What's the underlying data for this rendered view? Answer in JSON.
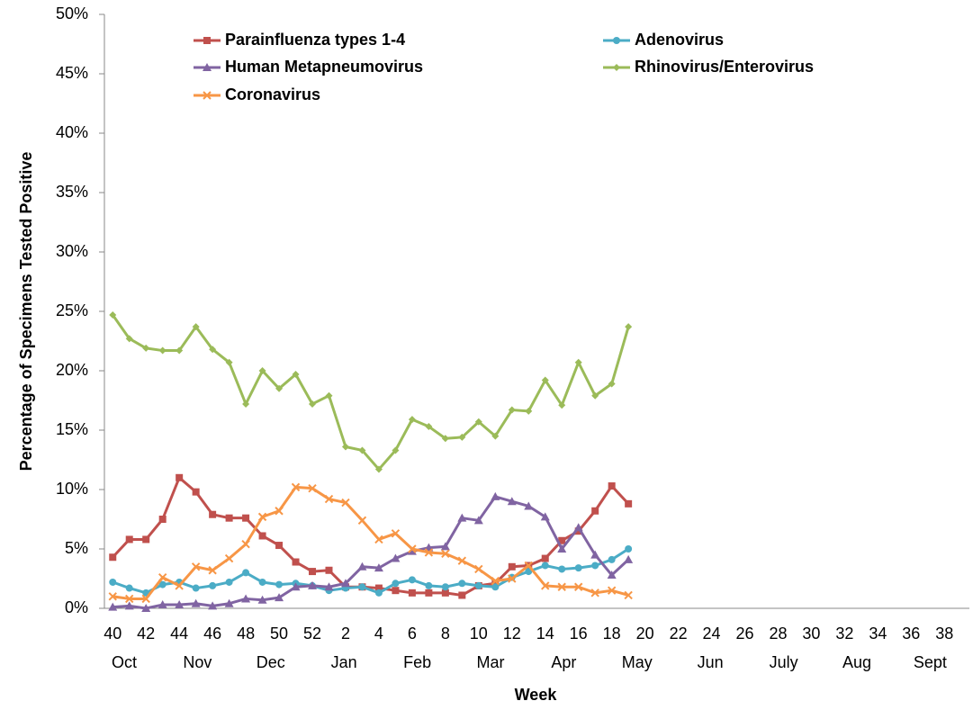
{
  "chart_data": {
    "type": "line",
    "y_label": "Percentage of Specimens Tested Positive",
    "x_label": "Week",
    "categories": [
      "40",
      null,
      "42",
      null,
      "44",
      null,
      "46",
      null,
      "48",
      null,
      "50",
      null,
      "52",
      null,
      "2",
      null,
      "4",
      null,
      "6",
      null,
      "8",
      null,
      "10",
      null,
      "12",
      null,
      "14",
      null,
      "16",
      null,
      "18",
      null,
      "20",
      null,
      "22",
      null,
      "24",
      null,
      "26",
      null,
      "28",
      null,
      "30",
      null,
      "32",
      null,
      "34",
      null,
      "36",
      null,
      "38",
      null
    ],
    "months": [
      "Oct",
      "Nov",
      "Dec",
      "Jan",
      "Feb",
      "Mar",
      "Apr",
      "May",
      "Jun",
      "July",
      "Aug",
      "Sept"
    ],
    "ylim": [
      0,
      50
    ],
    "yticks": [
      {
        "value": 0,
        "label": "0%"
      },
      {
        "value": 5,
        "label": "5%"
      },
      {
        "value": 10,
        "label": "10%"
      },
      {
        "value": 15,
        "label": "15%"
      },
      {
        "value": 20,
        "label": "20%"
      },
      {
        "value": 25,
        "label": "25%"
      },
      {
        "value": 30,
        "label": "30%"
      },
      {
        "value": 35,
        "label": "35%"
      },
      {
        "value": 40,
        "label": "40%"
      },
      {
        "value": 45,
        "label": "45%"
      },
      {
        "value": 50,
        "label": "50%"
      }
    ],
    "grid": false,
    "series": [
      {
        "name": "Parainfluenza types 1-4",
        "color": "#c0504d",
        "marker": "square",
        "values": [
          4.3,
          5.8,
          5.8,
          7.5,
          11.0,
          9.8,
          7.9,
          7.6,
          7.6,
          6.1,
          5.3,
          3.9,
          3.1,
          3.2,
          1.8,
          1.8,
          1.7,
          1.5,
          1.3,
          1.3,
          1.3,
          1.1,
          1.9,
          2.1,
          3.5,
          3.6,
          4.2,
          5.7,
          6.5,
          8.2,
          10.3,
          8.8,
          null,
          null,
          null,
          null,
          null,
          null,
          null,
          null,
          null,
          null,
          null,
          null,
          null,
          null,
          null,
          null,
          null,
          null,
          null,
          null
        ]
      },
      {
        "name": "Adenovirus",
        "color": "#4bacc6",
        "marker": "circle",
        "values": [
          2.2,
          1.7,
          1.3,
          2.0,
          2.2,
          1.7,
          1.9,
          2.2,
          3.0,
          2.2,
          2.0,
          2.1,
          1.9,
          1.5,
          1.7,
          1.8,
          1.3,
          2.1,
          2.4,
          1.9,
          1.8,
          2.1,
          1.9,
          1.8,
          2.6,
          3.1,
          3.6,
          3.3,
          3.4,
          3.6,
          4.1,
          5.0,
          null,
          null,
          null,
          null,
          null,
          null,
          null,
          null,
          null,
          null,
          null,
          null,
          null,
          null,
          null,
          null,
          null,
          null,
          null,
          null
        ]
      },
      {
        "name": "Human Metapneumovirus",
        "color": "#8064a2",
        "marker": "triangle",
        "values": [
          0.1,
          0.2,
          0.0,
          0.3,
          0.3,
          0.4,
          0.2,
          0.4,
          0.8,
          0.7,
          0.9,
          1.8,
          1.9,
          1.8,
          2.1,
          3.5,
          3.4,
          4.2,
          4.8,
          5.1,
          5.2,
          7.6,
          7.4,
          9.4,
          9.0,
          8.6,
          7.7,
          5.0,
          6.8,
          4.5,
          2.8,
          4.1,
          null,
          null,
          null,
          null,
          null,
          null,
          null,
          null,
          null,
          null,
          null,
          null,
          null,
          null,
          null,
          null,
          null,
          null,
          null,
          null
        ]
      },
      {
        "name": "Rhinovirus/Enterovirus",
        "color": "#9bbb59",
        "marker": "diamond",
        "values": [
          24.7,
          22.7,
          21.9,
          21.7,
          21.7,
          23.7,
          21.8,
          20.7,
          17.2,
          20.0,
          18.5,
          19.7,
          17.2,
          17.9,
          13.6,
          13.3,
          11.7,
          13.3,
          15.9,
          15.3,
          14.3,
          14.4,
          15.7,
          14.5,
          16.7,
          16.6,
          19.2,
          17.1,
          20.7,
          17.9,
          18.9,
          23.7,
          null,
          null,
          null,
          null,
          null,
          null,
          null,
          null,
          null,
          null,
          null,
          null,
          null,
          null,
          null,
          null,
          null,
          null,
          null,
          null
        ]
      },
      {
        "name": "Coronavirus",
        "color": "#f79646",
        "marker": "x",
        "values": [
          1.0,
          0.8,
          0.8,
          2.6,
          1.9,
          3.5,
          3.2,
          4.2,
          5.4,
          7.7,
          8.2,
          10.2,
          10.1,
          9.2,
          8.9,
          7.4,
          5.8,
          6.3,
          5.0,
          4.7,
          4.6,
          4.0,
          3.3,
          2.3,
          2.5,
          3.6,
          1.9,
          1.8,
          1.8,
          1.3,
          1.5,
          1.1,
          null,
          null,
          null,
          null,
          null,
          null,
          null,
          null,
          null,
          null,
          null,
          null,
          null,
          null,
          null,
          null,
          null,
          null,
          null,
          null
        ]
      }
    ]
  }
}
